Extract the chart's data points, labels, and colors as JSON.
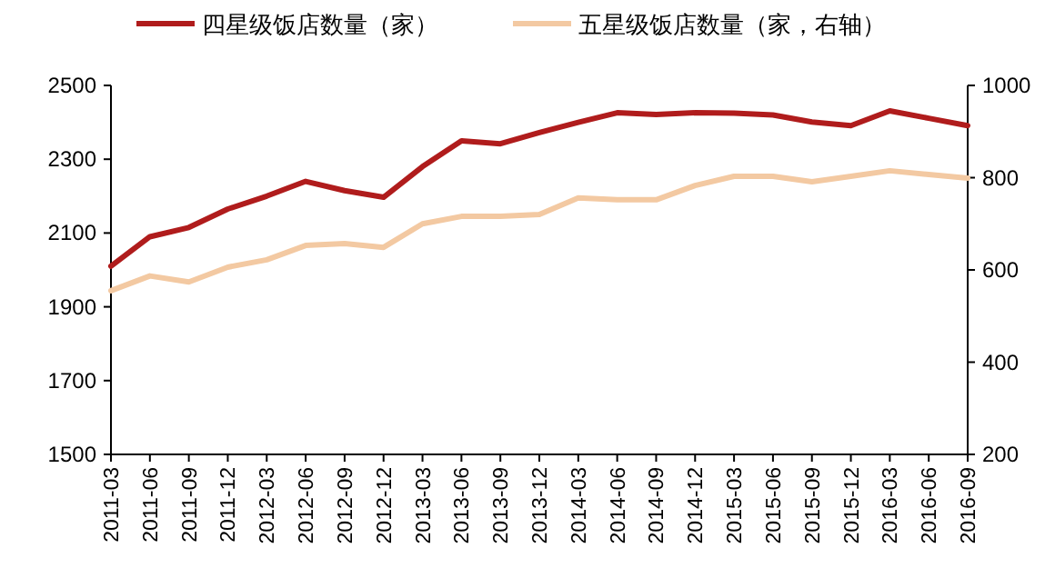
{
  "chart_data": {
    "type": "line",
    "categories": [
      "2011-03",
      "2011-06",
      "2011-09",
      "2011-12",
      "2012-03",
      "2012-06",
      "2012-09",
      "2012-12",
      "2013-03",
      "2013-06",
      "2013-09",
      "2013-12",
      "2014-03",
      "2014-06",
      "2014-09",
      "2014-12",
      "2015-03",
      "2015-06",
      "2015-09",
      "2015-12",
      "2016-03",
      "2016-06",
      "2016-09"
    ],
    "series": [
      {
        "name": "四星级饭店数量（家）",
        "color": "#b01c1c",
        "values": [
          2010,
          2090,
          2115,
          2165,
          2200,
          2240,
          2215,
          2197,
          2280,
          2350,
          2342,
          2372,
          2400,
          2426,
          2421,
          2426,
          2425,
          2420,
          2401,
          2391,
          2431,
          2411,
          2391
        ]
      },
      {
        "name": "五星级饭店数量（家，右轴）",
        "color": "#f3c9a2",
        "axis": "y2",
        "values": [
          555,
          587,
          574,
          606,
          622,
          653,
          657,
          649,
          700,
          716,
          716,
          720,
          756,
          752,
          752,
          783,
          803,
          803,
          791,
          803,
          815,
          807,
          799
        ]
      }
    ],
    "ylim": [
      1500,
      2500
    ],
    "yticks": [
      1500,
      1700,
      1900,
      2100,
      2300,
      2500
    ],
    "y2lim": [
      200,
      1000
    ],
    "y2ticks": [
      200,
      400,
      600,
      800,
      1000
    ],
    "legend": "top",
    "grid": false,
    "line_style": "solid",
    "marker": "none"
  }
}
